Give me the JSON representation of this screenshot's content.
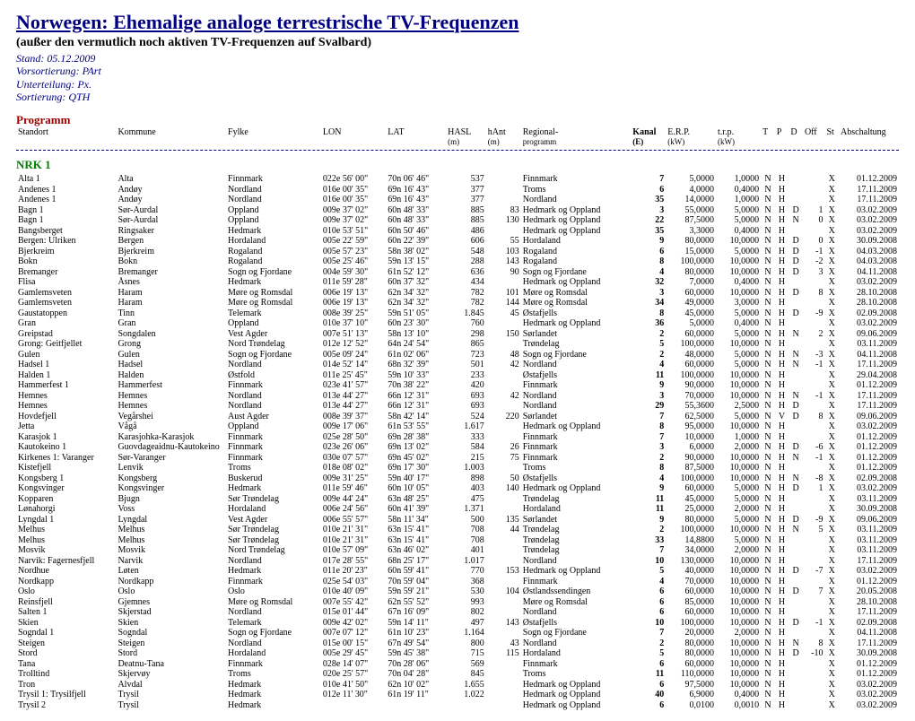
{
  "title": "Norwegen: Ehemalige analoge terrestrische TV-Frequenzen",
  "subtitle": "(außer den vermutlich noch aktiven TV-Frequenzen auf Svalbard)",
  "meta": {
    "stand": "Stand: 05.12.2009",
    "vorsort": "Vorsortierung: PArt",
    "unterteilung": "Unterteilung: Px.",
    "sortierung": "Sortierung: QTH"
  },
  "section": "Programm",
  "headers": {
    "standort": "Standort",
    "kommune": "Kommune",
    "fylke": "Fylke",
    "lon": "LON",
    "lat": "LAT",
    "hasl": "HASL",
    "hasl_u": "(m)",
    "hant": "hAnt",
    "hant_u": "(m)",
    "reg": "Regional-",
    "reg2": "programm",
    "kanal": "Kanal",
    "kanal_u": "(E)",
    "erp": "E.R.P.",
    "erp_u": "(kW)",
    "trp": "t.r.p.",
    "trp_u": "(kW)",
    "t": "T",
    "p": "P",
    "d": "D",
    "off": "Off",
    "st": "St",
    "ab": "Abschaltung"
  },
  "channel": "NRK 1",
  "rows": [
    [
      "Alta 1",
      "Alta",
      "Finnmark",
      "022e 56' 00\"",
      "70n 06' 46\"",
      "537",
      "",
      "Finnmark",
      "7",
      "5,0000",
      "1,0000",
      "N",
      "H",
      "",
      "",
      "X",
      "01.12.2009"
    ],
    [
      "Andenes 1",
      "Andøy",
      "Nordland",
      "016e 00' 35\"",
      "69n 16' 43\"",
      "377",
      "",
      "Troms",
      "6",
      "4,0000",
      "0,4000",
      "N",
      "H",
      "",
      "",
      "X",
      "17.11.2009"
    ],
    [
      "Andenes 1",
      "Andøy",
      "Nordland",
      "016e 00' 35\"",
      "69n 16' 43\"",
      "377",
      "",
      "Nordland",
      "35",
      "14,0000",
      "1,0000",
      "N",
      "H",
      "",
      "",
      "X",
      "17.11.2009"
    ],
    [
      "Bagn 1",
      "Sør-Aurdal",
      "Oppland",
      "009e 37' 02\"",
      "60n 48' 33\"",
      "885",
      "83",
      "Hedmark og Oppland",
      "3",
      "55,0000",
      "5,0000",
      "N",
      "H",
      "D",
      "1",
      "X",
      "03.02.2009"
    ],
    [
      "Bagn 1",
      "Sør-Aurdal",
      "Oppland",
      "009e 37' 02\"",
      "60n 48' 33\"",
      "885",
      "130",
      "Hedmark og Oppland",
      "22",
      "87,5000",
      "5,0000",
      "N",
      "H",
      "N",
      "0",
      "X",
      "03.02.2009"
    ],
    [
      "Bangsberget",
      "Ringsaker",
      "Hedmark",
      "010e 53' 51\"",
      "60n 50' 46\"",
      "486",
      "",
      "Hedmark og Oppland",
      "35",
      "3,3000",
      "0,4000",
      "N",
      "H",
      "",
      "",
      "X",
      "03.02.2009"
    ],
    [
      "Bergen: Ulriken",
      "Bergen",
      "Hordaland",
      "005e 22' 59\"",
      "60n 22' 39\"",
      "606",
      "55",
      "Hordaland",
      "9",
      "80,0000",
      "10,0000",
      "N",
      "H",
      "D",
      "0",
      "X",
      "30.09.2008"
    ],
    [
      "Bjerkreim",
      "Bjerkreim",
      "Rogaland",
      "005e 57' 23\"",
      "58n 38' 02\"",
      "548",
      "103",
      "Rogaland",
      "6",
      "15,0000",
      "5,0000",
      "N",
      "H",
      "D",
      "-1",
      "X",
      "04.03.2008"
    ],
    [
      "Bokn",
      "Bokn",
      "Rogaland",
      "005e 25' 46\"",
      "59n 13' 15\"",
      "288",
      "143",
      "Rogaland",
      "8",
      "100,0000",
      "10,0000",
      "N",
      "H",
      "D",
      "-2",
      "X",
      "04.03.2008"
    ],
    [
      "Bremanger",
      "Bremanger",
      "Sogn og Fjordane",
      "004e 59' 30\"",
      "61n 52' 12\"",
      "636",
      "90",
      "Sogn og Fjordane",
      "4",
      "80,0000",
      "10,0000",
      "N",
      "H",
      "D",
      "3",
      "X",
      "04.11.2008"
    ],
    [
      "Flisa",
      "Åsnes",
      "Hedmark",
      "011e 59' 28\"",
      "60n 37' 32\"",
      "434",
      "",
      "Hedmark og Oppland",
      "32",
      "7,0000",
      "0,4000",
      "N",
      "H",
      "",
      "",
      "X",
      "03.02.2009"
    ],
    [
      "Gamlemsveten",
      "Haram",
      "Møre og Romsdal",
      "006e 19' 13\"",
      "62n 34' 32\"",
      "782",
      "101",
      "Møre og Romsdal",
      "3",
      "60,0000",
      "10,0000",
      "N",
      "H",
      "D",
      "8",
      "X",
      "28.10.2008"
    ],
    [
      "Gamlemsveten",
      "Haram",
      "Møre og Romsdal",
      "006e 19' 13\"",
      "62n 34' 32\"",
      "782",
      "144",
      "Møre og Romsdal",
      "34",
      "49,0000",
      "3,0000",
      "N",
      "H",
      "",
      "",
      "X",
      "28.10.2008"
    ],
    [
      "Gaustatoppen",
      "Tinn",
      "Telemark",
      "008e 39' 25\"",
      "59n 51' 05\"",
      "1.845",
      "45",
      "Østafjells",
      "8",
      "45,0000",
      "5,0000",
      "N",
      "H",
      "D",
      "-9",
      "X",
      "02.09.2008"
    ],
    [
      "Gran",
      "Gran",
      "Oppland",
      "010e 37' 10\"",
      "60n 23' 30\"",
      "760",
      "",
      "Hedmark og Oppland",
      "36",
      "5,0000",
      "0,4000",
      "N",
      "H",
      "",
      "",
      "X",
      "03.02.2009"
    ],
    [
      "Greipstad",
      "Songdalen",
      "Vest Agder",
      "007e 51' 13\"",
      "58n 13' 10\"",
      "298",
      "150",
      "Sørlandet",
      "2",
      "60,0000",
      "5,0000",
      "N",
      "H",
      "N",
      "2",
      "X",
      "09.06.2009"
    ],
    [
      "Grong: Geitfjellet",
      "Grong",
      "Nord Trøndelag",
      "012e 12' 52\"",
      "64n 24' 54\"",
      "865",
      "",
      "Trøndelag",
      "5",
      "100,0000",
      "10,0000",
      "N",
      "H",
      "",
      "",
      "X",
      "03.11.2009"
    ],
    [
      "Gulen",
      "Gulen",
      "Sogn og Fjordane",
      "005e 09' 24\"",
      "61n 02' 06\"",
      "723",
      "48",
      "Sogn og Fjordane",
      "2",
      "48,0000",
      "5,0000",
      "N",
      "H",
      "N",
      "-3",
      "X",
      "04.11.2008"
    ],
    [
      "Hadsel 1",
      "Hadsel",
      "Nordland",
      "014e 52' 14\"",
      "68n 32' 39\"",
      "501",
      "42",
      "Nordland",
      "4",
      "60,0000",
      "5,0000",
      "N",
      "H",
      "N",
      "-1",
      "X",
      "17.11.2009"
    ],
    [
      "Halden 1",
      "Halden",
      "Østfold",
      "011e 25' 45\"",
      "59n 10' 33\"",
      "233",
      "",
      "Østafjells",
      "11",
      "100,0000",
      "10,0000",
      "N",
      "H",
      "",
      "",
      "X",
      "29.04.2008"
    ],
    [
      "Hammerfest 1",
      "Hammerfest",
      "Finnmark",
      "023e 41' 57\"",
      "70n 38' 22\"",
      "420",
      "",
      "Finnmark",
      "9",
      "90,0000",
      "10,0000",
      "N",
      "H",
      "",
      "",
      "X",
      "01.12.2009"
    ],
    [
      "Hemnes",
      "Hemnes",
      "Nordland",
      "013e 44' 27\"",
      "66n 12' 31\"",
      "693",
      "42",
      "Nordland",
      "3",
      "70,0000",
      "10,0000",
      "N",
      "H",
      "N",
      "-1",
      "X",
      "17.11.2009"
    ],
    [
      "Hemnes",
      "Hemnes",
      "Nordland",
      "013e 44' 27\"",
      "66n 12' 31\"",
      "693",
      "",
      "Nordland",
      "29",
      "55,3600",
      "2,5000",
      "N",
      "H",
      "D",
      "",
      "X",
      "17.11.2009"
    ],
    [
      "Hovdefjell",
      "Vegårshei",
      "Aust Agder",
      "008e 39' 37\"",
      "58n 42' 14\"",
      "524",
      "220",
      "Sørlandet",
      "7",
      "62,5000",
      "5,0000",
      "N",
      "V",
      "D",
      "8",
      "X",
      "09.06.2009"
    ],
    [
      "Jetta",
      "Vågå",
      "Oppland",
      "009e 17' 06\"",
      "61n 53' 55\"",
      "1.617",
      "",
      "Hedmark og Oppland",
      "8",
      "95,0000",
      "10,0000",
      "N",
      "H",
      "",
      "",
      "X",
      "03.02.2009"
    ],
    [
      "Karasjok 1",
      "Karasjohka-Karasjok",
      "Finnmark",
      "025e 28' 50\"",
      "69n 28' 38\"",
      "333",
      "",
      "Finnmark",
      "7",
      "10,0000",
      "1,0000",
      "N",
      "H",
      "",
      "",
      "X",
      "01.12.2009"
    ],
    [
      "Kautokeino 1",
      "Guovdageaidnu-Kautokeino",
      "Finnmark",
      "023e 26' 06\"",
      "69n 13' 02\"",
      "584",
      "26",
      "Finnmark",
      "3",
      "6,0000",
      "2,0000",
      "N",
      "H",
      "D",
      "-6",
      "X",
      "01.12.2009"
    ],
    [
      "Kirkenes 1: Varanger",
      "Sør-Varanger",
      "Finnmark",
      "030e 07' 57\"",
      "69n 45' 02\"",
      "215",
      "75",
      "Finnmark",
      "2",
      "90,0000",
      "10,0000",
      "N",
      "H",
      "N",
      "-1",
      "X",
      "01.12.2009"
    ],
    [
      "Kistefjell",
      "Lenvik",
      "Troms",
      "018e 08' 02\"",
      "69n 17' 30\"",
      "1.003",
      "",
      "Troms",
      "8",
      "87,5000",
      "10,0000",
      "N",
      "H",
      "",
      "",
      "X",
      "01.12.2009"
    ],
    [
      "Kongsberg 1",
      "Kongsberg",
      "Buskerud",
      "009e 31' 25\"",
      "59n 40' 17\"",
      "898",
      "50",
      "Østafjells",
      "4",
      "100,0000",
      "10,0000",
      "N",
      "H",
      "N",
      "-8",
      "X",
      "02.09.2008"
    ],
    [
      "Kongsvinger",
      "Kongsvinger",
      "Hedmark",
      "011e 59' 46\"",
      "60n 10' 05\"",
      "403",
      "140",
      "Hedmark og Oppland",
      "9",
      "60,0000",
      "5,0000",
      "N",
      "H",
      "D",
      "1",
      "X",
      "03.02.2009"
    ],
    [
      "Kopparen",
      "Bjugn",
      "Sør Trøndelag",
      "009e 44' 24\"",
      "63n 48' 25\"",
      "475",
      "",
      "Trøndelag",
      "11",
      "45,0000",
      "5,0000",
      "N",
      "H",
      "",
      "",
      "X",
      "03.11.2009"
    ],
    [
      "Lønahorgi",
      "Voss",
      "Hordaland",
      "006e 24' 56\"",
      "60n 41' 39\"",
      "1.371",
      "",
      "Hordaland",
      "11",
      "25,0000",
      "2,0000",
      "N",
      "H",
      "",
      "",
      "X",
      "30.09.2008"
    ],
    [
      "Lyngdal 1",
      "Lyngdal",
      "Vest Agder",
      "006e 55' 57\"",
      "58n 11' 34\"",
      "500",
      "135",
      "Sørlandet",
      "9",
      "80,0000",
      "5,0000",
      "N",
      "H",
      "D",
      "-9",
      "X",
      "09.06.2009"
    ],
    [
      "Melhus",
      "Melhus",
      "Sør Trøndelag",
      "010e 21' 31\"",
      "63n 15' 41\"",
      "708",
      "44",
      "Trøndelag",
      "2",
      "100,0000",
      "10,0000",
      "N",
      "H",
      "N",
      "5",
      "X",
      "03.11.2009"
    ],
    [
      "Melhus",
      "Melhus",
      "Sør Trøndelag",
      "010e 21' 31\"",
      "63n 15' 41\"",
      "708",
      "",
      "Trøndelag",
      "33",
      "14,8800",
      "5,0000",
      "N",
      "H",
      "",
      "",
      "X",
      "03.11.2009"
    ],
    [
      "Mosvik",
      "Mosvik",
      "Nord Trøndelag",
      "010e 57' 09\"",
      "63n 46' 02\"",
      "401",
      "",
      "Trøndelag",
      "7",
      "34,0000",
      "2,0000",
      "N",
      "H",
      "",
      "",
      "X",
      "03.11.2009"
    ],
    [
      "Narvik: Fagernesfjell",
      "Narvik",
      "Nordland",
      "017e 28' 55\"",
      "68n 25' 17\"",
      "1.017",
      "",
      "Nordland",
      "10",
      "130,0000",
      "10,0000",
      "N",
      "H",
      "",
      "",
      "X",
      "17.11.2009"
    ],
    [
      "Nordhue",
      "Løten",
      "Hedmark",
      "011e 20' 23\"",
      "60n 59' 41\"",
      "770",
      "153",
      "Hedmark og Oppland",
      "5",
      "40,0000",
      "10,0000",
      "N",
      "H",
      "D",
      "-7",
      "X",
      "03.02.2009"
    ],
    [
      "Nordkapp",
      "Nordkapp",
      "Finnmark",
      "025e 54' 03\"",
      "70n 59' 04\"",
      "368",
      "",
      "Finnmark",
      "4",
      "70,0000",
      "10,0000",
      "N",
      "H",
      "",
      "",
      "X",
      "01.12.2009"
    ],
    [
      "Oslo",
      "Oslo",
      "Oslo",
      "010e 40' 09\"",
      "59n 59' 21\"",
      "530",
      "104",
      "Østlandssendingen",
      "6",
      "60,0000",
      "10,0000",
      "N",
      "H",
      "D",
      "7",
      "X",
      "20.05.2008"
    ],
    [
      "Reinsfjell",
      "Gjemnes",
      "Møre og Romsdal",
      "007e 55' 42\"",
      "62n 55' 52\"",
      "993",
      "",
      "Møre og Romsdal",
      "6",
      "85,0000",
      "10,0000",
      "N",
      "H",
      "",
      "",
      "X",
      "28.10.2008"
    ],
    [
      "Salten 1",
      "Skjerstad",
      "Nordland",
      "015e 01' 44\"",
      "67n 16' 09\"",
      "802",
      "",
      "Nordland",
      "6",
      "60,0000",
      "10,0000",
      "N",
      "H",
      "",
      "",
      "X",
      "17.11.2009"
    ],
    [
      "Skien",
      "Skien",
      "Telemark",
      "009e 42' 02\"",
      "59n 14' 11\"",
      "497",
      "143",
      "Østafjells",
      "10",
      "100,0000",
      "10,0000",
      "N",
      "H",
      "D",
      "-1",
      "X",
      "02.09.2008"
    ],
    [
      "Sogndal 1",
      "Sogndal",
      "Sogn og Fjordane",
      "007e 07' 12\"",
      "61n 10' 23\"",
      "1.164",
      "",
      "Sogn og Fjordane",
      "7",
      "20,0000",
      "2,0000",
      "N",
      "H",
      "",
      "",
      "X",
      "04.11.2008"
    ],
    [
      "Steigen",
      "Steigen",
      "Nordland",
      "015e 00' 15\"",
      "67n 49' 54\"",
      "800",
      "43",
      "Nordland",
      "2",
      "80,0000",
      "10,0000",
      "N",
      "H",
      "N",
      "8",
      "X",
      "17.11.2009"
    ],
    [
      "Stord",
      "Stord",
      "Hordaland",
      "005e 29' 45\"",
      "59n 45' 38\"",
      "715",
      "115",
      "Hordaland",
      "5",
      "80,0000",
      "10,0000",
      "N",
      "H",
      "D",
      "-10",
      "X",
      "30.09.2008"
    ],
    [
      "Tana",
      "Deatnu-Tana",
      "Finnmark",
      "028e 14' 07\"",
      "70n 28' 06\"",
      "569",
      "",
      "Finnmark",
      "6",
      "60,0000",
      "10,0000",
      "N",
      "H",
      "",
      "",
      "X",
      "01.12.2009"
    ],
    [
      "Trolltind",
      "Skjervøy",
      "Troms",
      "020e 25' 57\"",
      "70n 04' 28\"",
      "845",
      "",
      "Troms",
      "11",
      "110,0000",
      "10,0000",
      "N",
      "H",
      "",
      "",
      "X",
      "01.12.2009"
    ],
    [
      "Tron",
      "Alvdal",
      "Hedmark",
      "010e 41' 50\"",
      "62n 10' 02\"",
      "1.655",
      "",
      "Hedmark og Oppland",
      "6",
      "97,5000",
      "10,0000",
      "N",
      "H",
      "",
      "",
      "X",
      "03.02.2009"
    ],
    [
      "Trysil 1: Trysilfjell",
      "Trysil",
      "Hedmark",
      "012e 11' 30\"",
      "61n 19' 11\"",
      "1.022",
      "",
      "Hedmark og Oppland",
      "40",
      "6,9000",
      "0,4000",
      "N",
      "H",
      "",
      "",
      "X",
      "03.02.2009"
    ],
    [
      "Trysil 2",
      "Trysil",
      "Hedmark",
      "",
      "",
      "",
      "",
      "Hedmark og Oppland",
      "6",
      "0,0100",
      "0,0010",
      "N",
      "H",
      "",
      "",
      "X",
      "03.02.2009"
    ]
  ]
}
